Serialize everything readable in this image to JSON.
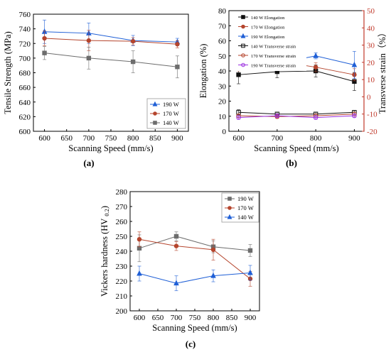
{
  "colors": {
    "blue": "#1f5fd6",
    "red": "#b5452d",
    "gray": "#6d6d6d",
    "black": "#111111",
    "purple": "#9b2fe0",
    "axis_red": "#c0392b"
  },
  "chart_data": [
    {
      "id": "a",
      "type": "line",
      "caption": "(a)",
      "title": "",
      "xlabel": "Scanning Speed (mm/s)",
      "ylabel": "Tensile Strength (MPa)",
      "xlim": [
        575,
        925
      ],
      "ylim": [
        600,
        760
      ],
      "xticks": [
        600,
        650,
        700,
        750,
        800,
        850,
        900
      ],
      "yticks": [
        600,
        620,
        640,
        660,
        680,
        700,
        720,
        740,
        760
      ],
      "legend_position": "lower-right",
      "x": [
        600,
        700,
        800,
        900
      ],
      "series": [
        {
          "name": "190 W",
          "color": "#1f5fd6",
          "marker": "triangle",
          "values": [
            736,
            734,
            724,
            722
          ],
          "errors": [
            16,
            14,
            7,
            5
          ]
        },
        {
          "name": "170 W",
          "color": "#b5452d",
          "marker": "circle",
          "values": [
            727,
            724,
            723,
            719
          ],
          "errors": [
            10,
            14,
            5,
            5
          ]
        },
        {
          "name": "140 W",
          "color": "#6d6d6d",
          "marker": "square",
          "values": [
            707,
            700,
            695,
            688
          ],
          "errors": [
            9,
            15,
            15,
            15
          ]
        }
      ]
    },
    {
      "id": "b",
      "type": "line",
      "caption": "(b)",
      "title": "",
      "xlabel": "Scanning Speed (mm/s)",
      "ylabel": "Elongation (%)",
      "ylabel_right": "Transverse strain（%）",
      "xlim": [
        575,
        925
      ],
      "ylim": [
        0,
        80
      ],
      "ylim_right": [
        -20,
        50
      ],
      "xticks": [
        600,
        700,
        800,
        900
      ],
      "yticks": [
        0,
        10,
        20,
        30,
        40,
        50,
        60,
        70,
        80
      ],
      "yticks_right": [
        -20,
        -10,
        0,
        10,
        20,
        30,
        40,
        50
      ],
      "legend_position": "top-right",
      "x": [
        600,
        700,
        800,
        900
      ],
      "series": [
        {
          "name": "140 W Elongation",
          "color": "#111111",
          "marker": "square",
          "filled": true,
          "axis": "left",
          "values": [
            37.5,
            39.5,
            40,
            33
          ],
          "errors": [
            6,
            4,
            4,
            6
          ]
        },
        {
          "name": "170 W Elongation",
          "color": "#b5452d",
          "marker": "circle",
          "filled": true,
          "axis": "left",
          "values": [
            43,
            46.5,
            42.5,
            37.5
          ],
          "errors": [
            3,
            4,
            3,
            4
          ]
        },
        {
          "name": "190 W Elongation",
          "color": "#1f5fd6",
          "marker": "triangle",
          "filled": true,
          "axis": "left",
          "values": [
            44,
            45,
            50,
            44
          ],
          "errors": [
            2,
            2,
            2,
            9
          ]
        },
        {
          "name": "140 W Transverse strain",
          "color": "#111111",
          "marker": "square",
          "filled": false,
          "axis": "right",
          "values": [
            -9,
            -10,
            -10,
            -9
          ],
          "errors": [
            1.5,
            1,
            1,
            1
          ]
        },
        {
          "name": "170 W Transverse strain",
          "color": "#b5452d",
          "marker": "circle",
          "filled": false,
          "axis": "right",
          "values": [
            -11,
            -11.5,
            -11,
            -10
          ],
          "errors": [
            1,
            1,
            1,
            1
          ]
        },
        {
          "name": "190 W Transverse strain",
          "color": "#9b2fe0",
          "marker": "circle",
          "filled": false,
          "axis": "right",
          "values": [
            -12,
            -11,
            -12,
            -11
          ],
          "errors": [
            1,
            1,
            1,
            1
          ]
        }
      ]
    },
    {
      "id": "c",
      "type": "line",
      "caption": "(c)",
      "title": "",
      "xlabel": "Scanning Speed (mm/s)",
      "ylabel": "Vickers hardness (HV",
      "ylabel_sub": "0.2",
      "ylabel_close": ")",
      "xlim": [
        575,
        925
      ],
      "ylim": [
        200,
        280
      ],
      "xticks": [
        600,
        650,
        700,
        750,
        800,
        850,
        900
      ],
      "yticks": [
        200,
        210,
        220,
        230,
        240,
        250,
        260,
        270,
        280
      ],
      "legend_position": "top-right",
      "x": [
        600,
        700,
        800,
        900
      ],
      "series": [
        {
          "name": "190 W",
          "color": "#6d6d6d",
          "marker": "square",
          "values": [
            242,
            250,
            243,
            240.5
          ],
          "errors": [
            9,
            3,
            4,
            4
          ]
        },
        {
          "name": "170 W",
          "color": "#b5452d",
          "marker": "circle",
          "values": [
            248,
            243.5,
            241,
            221.5
          ],
          "errors": [
            5,
            3,
            7,
            5
          ]
        },
        {
          "name": "140 W",
          "color": "#1f5fd6",
          "marker": "triangle",
          "values": [
            225,
            218.5,
            223.5,
            225.5
          ],
          "errors": [
            5,
            5,
            4,
            5
          ]
        }
      ]
    }
  ]
}
